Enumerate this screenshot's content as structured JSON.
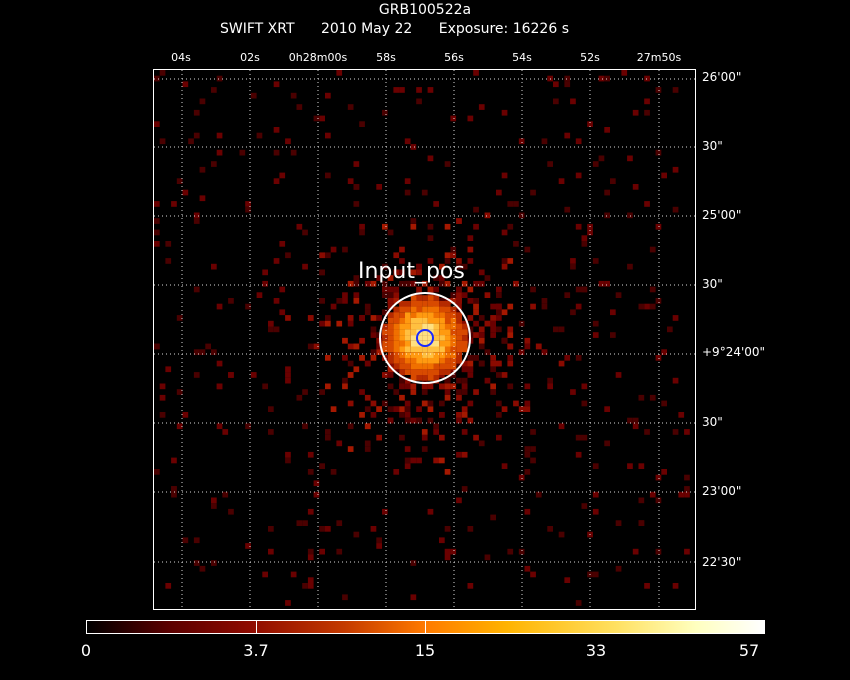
{
  "header": {
    "target": "GRB100522a",
    "instrument": "SWIFT XRT",
    "date": "2010 May 22",
    "exposure": "Exposure: 16226 s"
  },
  "axes": {
    "ra_ticks": [
      "04s",
      "02s",
      "0h28m00s",
      "58s",
      "56s",
      "54s",
      "52s",
      "27m50s"
    ],
    "dec_ticks": [
      "26'00\"",
      "30\"",
      "25'00\"",
      "30\"",
      "+9°24'00\"",
      "30\"",
      "23'00\"",
      "22'30\""
    ]
  },
  "source": {
    "label": "Input_pos"
  },
  "colorbar": {
    "ticks": [
      "0",
      "3.7",
      "15",
      "33",
      "57"
    ]
  },
  "colors": {
    "frame": "#ffffff",
    "grid": "#ffffff",
    "circle_outer": "#ffffff",
    "circle_inner": "#1a2aff"
  }
}
